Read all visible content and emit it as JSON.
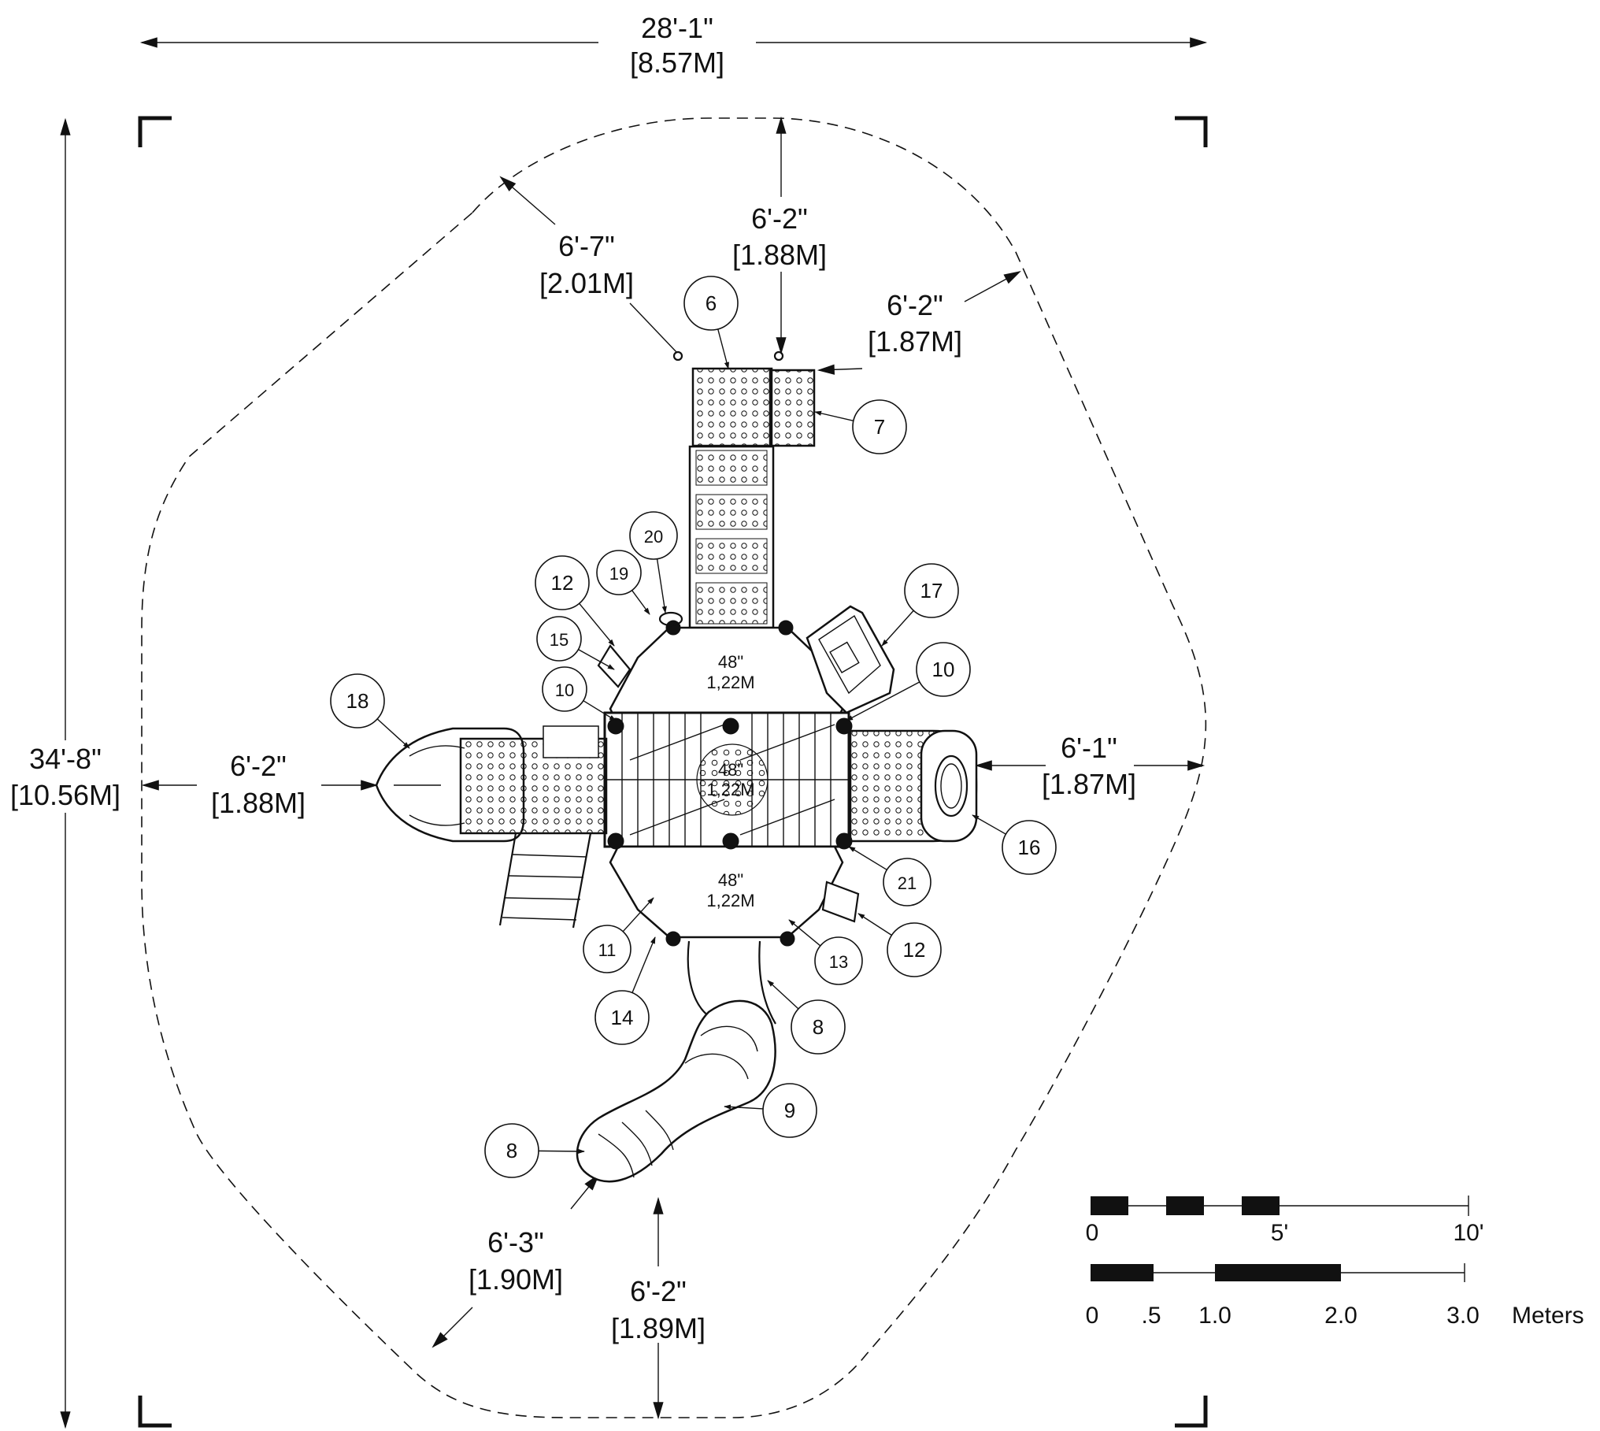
{
  "overall": {
    "width_ft": "28'-1\"",
    "width_m": "[8.57M]",
    "length_ft": "34'-8\"",
    "length_m": "[10.56M]"
  },
  "clearances": {
    "top_left_diag": {
      "ft": "6'-7\"",
      "m": "[2.01M]"
    },
    "top": {
      "ft": "6'-2\"",
      "m": "[1.88M]"
    },
    "top_right_diag": {
      "ft": "6'-2\"",
      "m": "[1.87M]"
    },
    "left": {
      "ft": "6'-2\"",
      "m": "[1.88M]"
    },
    "right": {
      "ft": "6'-1\"",
      "m": "[1.87M]"
    },
    "bottom_left_diag": {
      "ft": "6'-3\"",
      "m": "[1.90M]"
    },
    "bottom": {
      "ft": "6'-2\"",
      "m": "[1.89M]"
    }
  },
  "deck_heights": [
    {
      "in": "48\"",
      "m": "1,22M"
    },
    {
      "in": "48\"",
      "m": "1,22M"
    },
    {
      "in": "48\"",
      "m": "1,22M"
    }
  ],
  "callouts": [
    "6",
    "7",
    "20",
    "19",
    "12",
    "15",
    "10",
    "17",
    "10",
    "18",
    "16",
    "21",
    "12",
    "11",
    "13",
    "14",
    "8",
    "9",
    "8"
  ],
  "scale_bar": {
    "imperial_ticks": [
      "0",
      "5'",
      "10'"
    ],
    "metric_ticks": [
      "0",
      ".5",
      "1.0",
      "2.0",
      "3.0"
    ],
    "metric_unit": "Meters"
  }
}
